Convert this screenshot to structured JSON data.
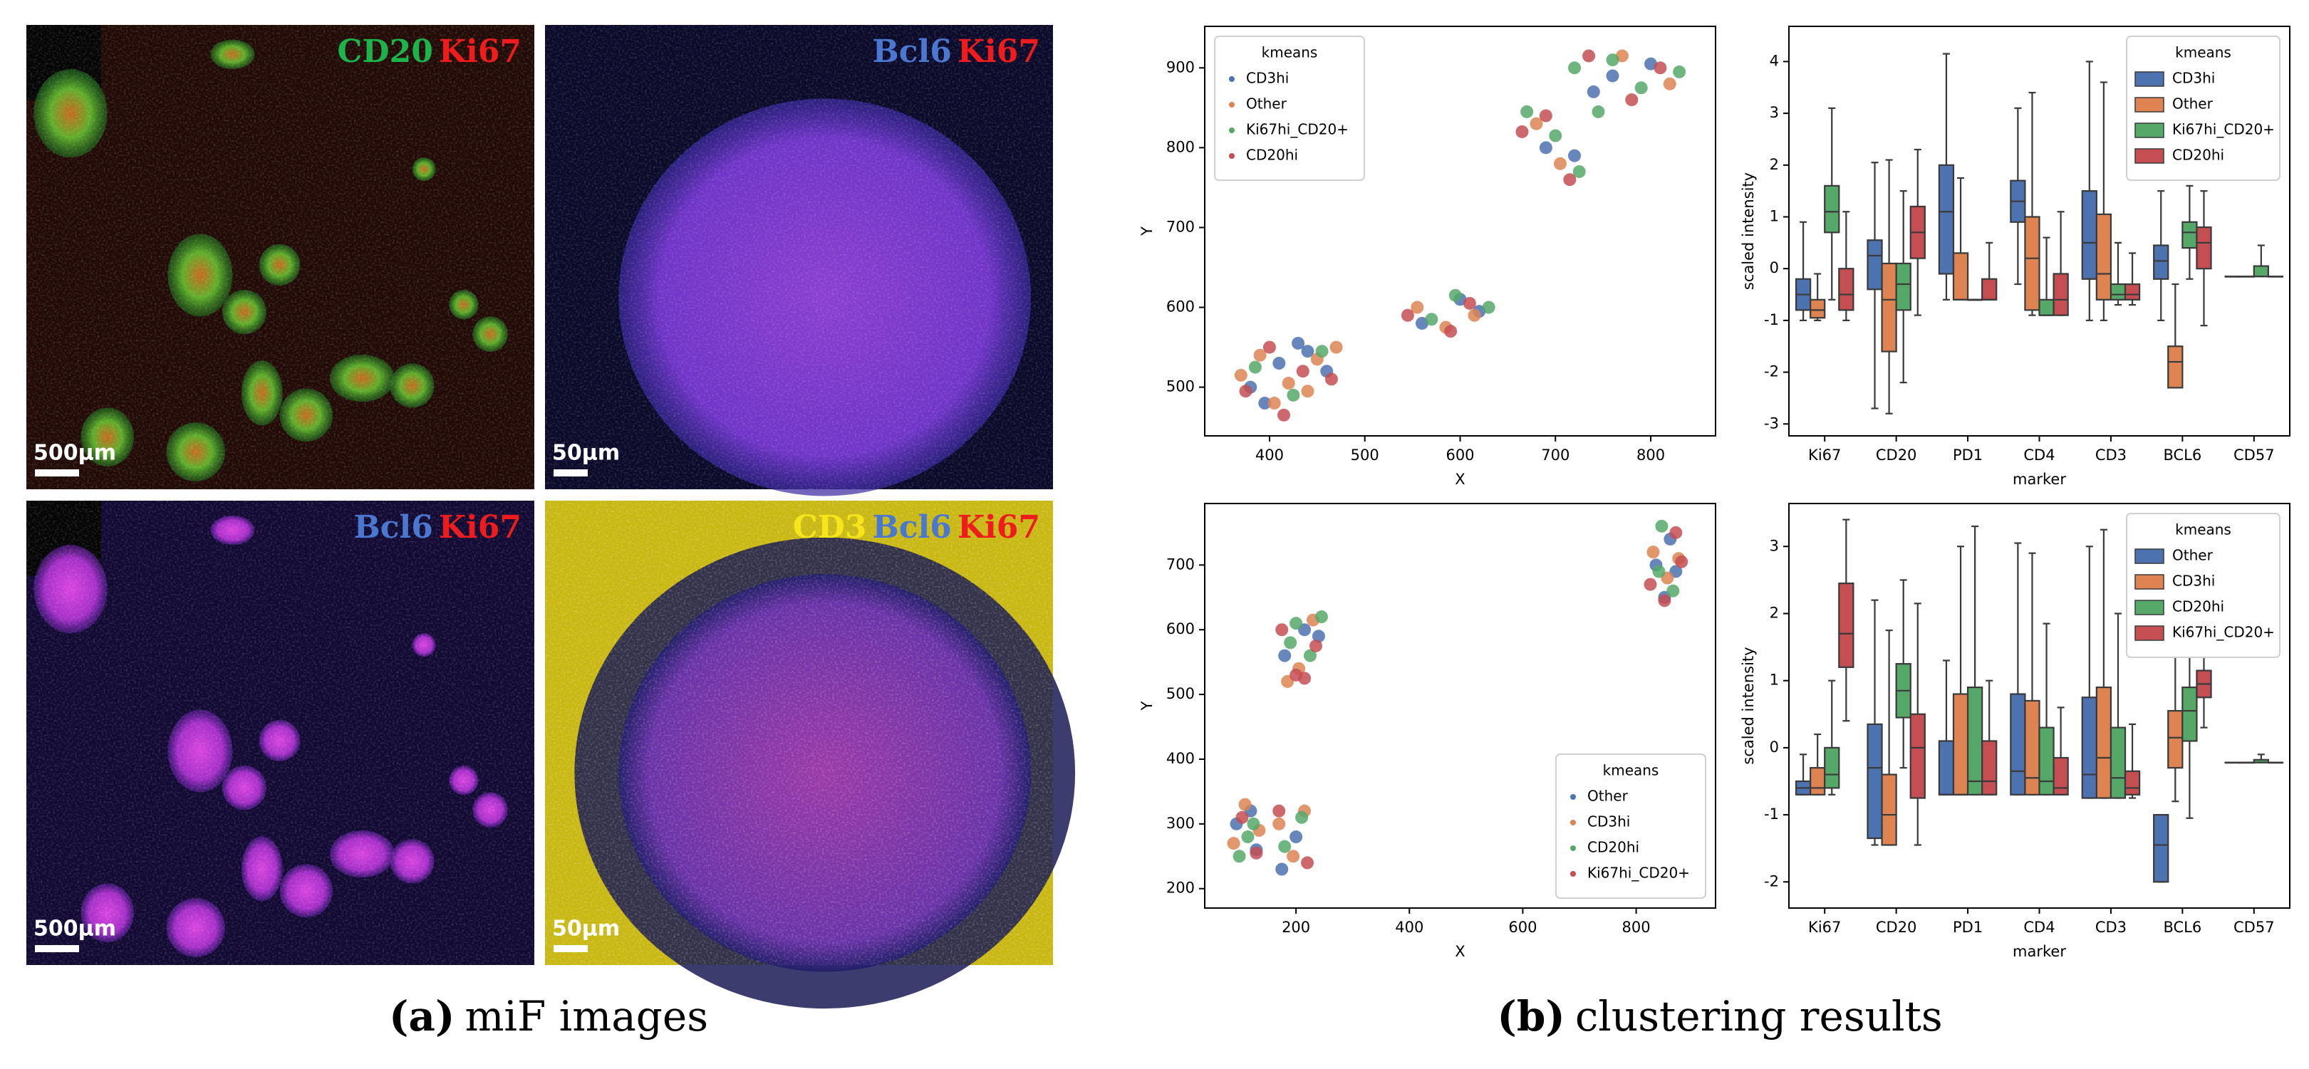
{
  "panel_a": {
    "caption_label": "(a)",
    "caption": "miF images",
    "images": [
      {
        "markers": [
          {
            "text": "CD20",
            "color": "#1db34b"
          },
          {
            "text": "Ki67",
            "color": "#ee1c1c"
          }
        ],
        "scale": "500μm"
      },
      {
        "markers": [
          {
            "text": "Bcl6",
            "color": "#4a78d0"
          },
          {
            "text": "Ki67",
            "color": "#ee1c1c"
          }
        ],
        "scale": "50μm"
      },
      {
        "markers": [
          {
            "text": "Bcl6",
            "color": "#4a78d0"
          },
          {
            "text": "Ki67",
            "color": "#ee1c1c"
          }
        ],
        "scale": "500μm"
      },
      {
        "markers": [
          {
            "text": "CD3",
            "color": "#f5e51b"
          },
          {
            "text": "Bcl6",
            "color": "#4a78d0"
          },
          {
            "text": "Ki67",
            "color": "#ee1c1c"
          }
        ],
        "scale": "50μm"
      }
    ]
  },
  "panel_b": {
    "caption_label": "(b)",
    "caption": "clustering results"
  },
  "chart_data": [
    {
      "type": "scatter",
      "xlabel": "X",
      "ylabel": "Y",
      "xlim": [
        332,
        868
      ],
      "ylim": [
        439,
        952
      ],
      "xticks": [
        400,
        500,
        600,
        700,
        800
      ],
      "yticks": [
        500,
        600,
        700,
        800,
        900
      ],
      "legend": {
        "title": "kmeans",
        "loc": "upper left"
      },
      "series": [
        {
          "name": "CD3hi",
          "color": "#4c72b0",
          "x": [
            380,
            410,
            440,
            460,
            395,
            430,
            560,
            600,
            620,
            690,
            720,
            760,
            800,
            740
          ],
          "y": [
            500,
            530,
            545,
            520,
            480,
            555,
            580,
            610,
            595,
            800,
            790,
            890,
            905,
            870
          ]
        },
        {
          "name": "Other",
          "color": "#dd8452",
          "x": [
            370,
            390,
            420,
            450,
            470,
            405,
            440,
            555,
            585,
            615,
            680,
            705,
            770,
            820
          ],
          "y": [
            515,
            540,
            505,
            535,
            550,
            480,
            495,
            600,
            575,
            590,
            830,
            780,
            915,
            880
          ]
        },
        {
          "name": "Ki67hi_CD20+",
          "color": "#55a868",
          "x": [
            385,
            425,
            455,
            570,
            595,
            630,
            670,
            700,
            725,
            720,
            760,
            790,
            830,
            745
          ],
          "y": [
            525,
            490,
            545,
            585,
            615,
            600,
            845,
            815,
            770,
            900,
            910,
            875,
            895,
            845
          ]
        },
        {
          "name": "CD20hi",
          "color": "#c44e52",
          "x": [
            375,
            400,
            435,
            465,
            415,
            545,
            590,
            610,
            665,
            690,
            715,
            735,
            780,
            810
          ],
          "y": [
            495,
            550,
            520,
            510,
            465,
            590,
            570,
            605,
            820,
            840,
            760,
            915,
            860,
            900
          ]
        }
      ]
    },
    {
      "type": "box",
      "xlabel": "marker",
      "ylabel": "scaled intensity",
      "categories": [
        "Ki67",
        "CD20",
        "PD1",
        "CD4",
        "CD3",
        "BCL6",
        "CD57"
      ],
      "ylim": [
        -3.23,
        4.68
      ],
      "yticks": [
        -3,
        -2,
        -1,
        0,
        1,
        2,
        3,
        4
      ],
      "legend": {
        "title": "kmeans",
        "loc": "upper right"
      },
      "series": [
        {
          "name": "CD3hi",
          "color": "#4c72b0",
          "boxes": [
            {
              "low": -1.0,
              "q1": -0.8,
              "median": -0.5,
              "q3": -0.2,
              "high": 0.9
            },
            {
              "low": -2.7,
              "q1": -0.4,
              "median": 0.25,
              "q3": 0.55,
              "high": 2.05
            },
            {
              "low": -0.6,
              "q1": -0.1,
              "median": 1.1,
              "q3": 2.0,
              "high": 4.15
            },
            {
              "low": -0.3,
              "q1": 0.9,
              "median": 1.3,
              "q3": 1.7,
              "high": 3.1
            },
            {
              "low": -1.0,
              "q1": -0.2,
              "median": 0.5,
              "q3": 1.5,
              "high": 4.0
            },
            {
              "low": -1.0,
              "q1": -0.2,
              "median": 0.15,
              "q3": 0.45,
              "high": 1.5
            },
            {
              "low": -0.15,
              "q1": -0.15,
              "median": -0.15,
              "q3": -0.15,
              "high": -0.15
            }
          ]
        },
        {
          "name": "Other",
          "color": "#dd8452",
          "boxes": [
            {
              "low": -1.0,
              "q1": -0.95,
              "median": -0.8,
              "q3": -0.6,
              "high": -0.1
            },
            {
              "low": -2.8,
              "q1": -1.6,
              "median": -0.6,
              "q3": 0.1,
              "high": 2.1
            },
            {
              "low": -0.6,
              "q1": -0.6,
              "median": -0.6,
              "q3": 0.3,
              "high": 1.75
            },
            {
              "low": -0.9,
              "q1": -0.8,
              "median": 0.2,
              "q3": 1.0,
              "high": 3.4
            },
            {
              "low": -1.0,
              "q1": -0.6,
              "median": -0.1,
              "q3": 1.05,
              "high": 3.6
            },
            {
              "low": -2.3,
              "q1": -2.3,
              "median": -1.8,
              "q3": -1.5,
              "high": -0.3
            },
            {
              "low": -0.15,
              "q1": -0.15,
              "median": -0.15,
              "q3": -0.15,
              "high": -0.15
            }
          ]
        },
        {
          "name": "Ki67hi_CD20+",
          "color": "#55a868",
          "boxes": [
            {
              "low": -0.6,
              "q1": 0.7,
              "median": 1.1,
              "q3": 1.6,
              "high": 3.1
            },
            {
              "low": -2.2,
              "q1": -0.8,
              "median": -0.3,
              "q3": 0.1,
              "high": 1.5
            },
            {
              "low": -0.6,
              "q1": -0.6,
              "median": -0.6,
              "q3": -0.6,
              "high": -0.6
            },
            {
              "low": -0.9,
              "q1": -0.9,
              "median": -0.9,
              "q3": -0.6,
              "high": 0.6
            },
            {
              "low": -0.7,
              "q1": -0.6,
              "median": -0.5,
              "q3": -0.3,
              "high": 0.5
            },
            {
              "low": -0.2,
              "q1": 0.4,
              "median": 0.7,
              "q3": 0.9,
              "high": 1.6
            },
            {
              "low": -0.15,
              "q1": -0.15,
              "median": -0.15,
              "q3": 0.05,
              "high": 0.45
            }
          ]
        },
        {
          "name": "CD20hi",
          "color": "#c44e52",
          "boxes": [
            {
              "low": -1.0,
              "q1": -0.8,
              "median": -0.5,
              "q3": 0.0,
              "high": 1.1
            },
            {
              "low": -0.9,
              "q1": 0.2,
              "median": 0.7,
              "q3": 1.2,
              "high": 2.3
            },
            {
              "low": -0.6,
              "q1": -0.6,
              "median": -0.6,
              "q3": -0.2,
              "high": 0.5
            },
            {
              "low": -0.9,
              "q1": -0.9,
              "median": -0.6,
              "q3": -0.1,
              "high": 1.1
            },
            {
              "low": -0.7,
              "q1": -0.6,
              "median": -0.5,
              "q3": -0.3,
              "high": 0.3
            },
            {
              "low": -1.1,
              "q1": 0.0,
              "median": 0.5,
              "q3": 0.8,
              "high": 1.5
            },
            {
              "low": -0.15,
              "q1": -0.15,
              "median": -0.15,
              "q3": -0.15,
              "high": -0.15
            }
          ]
        }
      ]
    },
    {
      "type": "scatter",
      "xlabel": "X",
      "ylabel": "Y",
      "xlim": [
        39,
        940
      ],
      "ylim": [
        170,
        795
      ],
      "xticks": [
        200,
        400,
        600,
        800
      ],
      "yticks": [
        200,
        300,
        400,
        500,
        600,
        700
      ],
      "legend": {
        "title": "kmeans",
        "loc": "lower right"
      },
      "series": [
        {
          "name": "Other",
          "color": "#4c72b0",
          "x": [
            95,
            120,
            175,
            200,
            180,
            215,
            240,
            835,
            860,
            870,
            850,
            130
          ],
          "y": [
            300,
            320,
            230,
            280,
            560,
            600,
            590,
            700,
            740,
            690,
            650,
            260
          ]
        },
        {
          "name": "CD3hi",
          "color": "#dd8452",
          "x": [
            90,
            110,
            135,
            170,
            195,
            215,
            185,
            230,
            830,
            855,
            875,
            205
          ],
          "y": [
            270,
            330,
            290,
            300,
            250,
            320,
            520,
            615,
            720,
            680,
            710,
            540
          ]
        },
        {
          "name": "CD20hi",
          "color": "#55a868",
          "x": [
            100,
            125,
            180,
            210,
            190,
            225,
            245,
            200,
            845,
            865,
            840,
            115
          ],
          "y": [
            250,
            300,
            265,
            310,
            580,
            560,
            620,
            610,
            760,
            660,
            690,
            280
          ]
        },
        {
          "name": "Ki67hi_CD20+",
          "color": "#c44e52",
          "x": [
            105,
            130,
            170,
            220,
            200,
            175,
            235,
            215,
            825,
            850,
            870,
            880
          ],
          "y": [
            310,
            255,
            320,
            240,
            530,
            600,
            575,
            525,
            670,
            645,
            750,
            705
          ]
        }
      ]
    },
    {
      "type": "box",
      "xlabel": "marker",
      "ylabel": "scaled intensity",
      "categories": [
        "Ki67",
        "CD20",
        "PD1",
        "CD4",
        "CD3",
        "BCL6",
        "CD57"
      ],
      "ylim": [
        -2.39,
        3.64
      ],
      "yticks": [
        -2,
        -1,
        0,
        1,
        2,
        3
      ],
      "legend": {
        "title": "kmeans",
        "loc": "upper right"
      },
      "series": [
        {
          "name": "Other",
          "color": "#4c72b0",
          "boxes": [
            {
              "low": -0.7,
              "q1": -0.7,
              "median": -0.6,
              "q3": -0.5,
              "high": -0.1
            },
            {
              "low": -1.45,
              "q1": -1.35,
              "median": -0.3,
              "q3": 0.35,
              "high": 2.2
            },
            {
              "low": -0.7,
              "q1": -0.7,
              "median": -0.7,
              "q3": 0.1,
              "high": 1.3
            },
            {
              "low": -0.7,
              "q1": -0.7,
              "median": -0.35,
              "q3": 0.8,
              "high": 3.05
            },
            {
              "low": -0.75,
              "q1": -0.75,
              "median": -0.4,
              "q3": 0.75,
              "high": 3.0
            },
            {
              "low": -2.0,
              "q1": -2.0,
              "median": -1.45,
              "q3": -1.0,
              "high": -1.0
            },
            {
              "low": -0.22,
              "q1": -0.22,
              "median": -0.22,
              "q3": -0.22,
              "high": -0.22
            }
          ]
        },
        {
          "name": "CD3hi",
          "color": "#dd8452",
          "boxes": [
            {
              "low": -0.7,
              "q1": -0.7,
              "median": -0.6,
              "q3": -0.3,
              "high": 0.2
            },
            {
              "low": -1.45,
              "q1": -1.45,
              "median": -1.0,
              "q3": -0.4,
              "high": 1.75
            },
            {
              "low": -0.7,
              "q1": -0.7,
              "median": -0.7,
              "q3": 0.8,
              "high": 3.0
            },
            {
              "low": -0.7,
              "q1": -0.7,
              "median": -0.45,
              "q3": 0.7,
              "high": 2.9
            },
            {
              "low": -0.75,
              "q1": -0.75,
              "median": -0.15,
              "q3": 0.9,
              "high": 3.25
            },
            {
              "low": -0.8,
              "q1": -0.3,
              "median": 0.15,
              "q3": 0.55,
              "high": 1.4
            },
            {
              "low": -0.22,
              "q1": -0.22,
              "median": -0.22,
              "q3": -0.22,
              "high": -0.22
            }
          ]
        },
        {
          "name": "CD20hi",
          "color": "#55a868",
          "boxes": [
            {
              "low": -0.7,
              "q1": -0.6,
              "median": -0.4,
              "q3": 0.0,
              "high": 1.0
            },
            {
              "low": -0.3,
              "q1": 0.45,
              "median": 0.85,
              "q3": 1.25,
              "high": 2.5
            },
            {
              "low": -0.7,
              "q1": -0.7,
              "median": -0.5,
              "q3": 0.9,
              "high": 3.3
            },
            {
              "low": -0.7,
              "q1": -0.7,
              "median": -0.5,
              "q3": 0.3,
              "high": 1.85
            },
            {
              "low": -0.75,
              "q1": -0.75,
              "median": -0.45,
              "q3": 0.3,
              "high": 2.0
            },
            {
              "low": -1.05,
              "q1": 0.1,
              "median": 0.55,
              "q3": 0.9,
              "high": 1.55
            },
            {
              "low": -0.22,
              "q1": -0.22,
              "median": -0.22,
              "q3": -0.18,
              "high": -0.1
            }
          ]
        },
        {
          "name": "Ki67hi_CD20+",
          "color": "#c44e52",
          "boxes": [
            {
              "low": 0.4,
              "q1": 1.2,
              "median": 1.7,
              "q3": 2.45,
              "high": 3.4
            },
            {
              "low": -1.45,
              "q1": -0.75,
              "median": 0.0,
              "q3": 0.5,
              "high": 2.15
            },
            {
              "low": -0.7,
              "q1": -0.7,
              "median": -0.5,
              "q3": 0.1,
              "high": 1.0
            },
            {
              "low": -0.7,
              "q1": -0.7,
              "median": -0.6,
              "q3": -0.15,
              "high": 0.6
            },
            {
              "low": -0.75,
              "q1": -0.7,
              "median": -0.6,
              "q3": -0.35,
              "high": 0.35
            },
            {
              "low": 0.3,
              "q1": 0.75,
              "median": 0.95,
              "q3": 1.15,
              "high": 1.55
            },
            {
              "low": -0.22,
              "q1": -0.22,
              "median": -0.22,
              "q3": -0.22,
              "high": -0.22
            }
          ]
        }
      ]
    }
  ]
}
